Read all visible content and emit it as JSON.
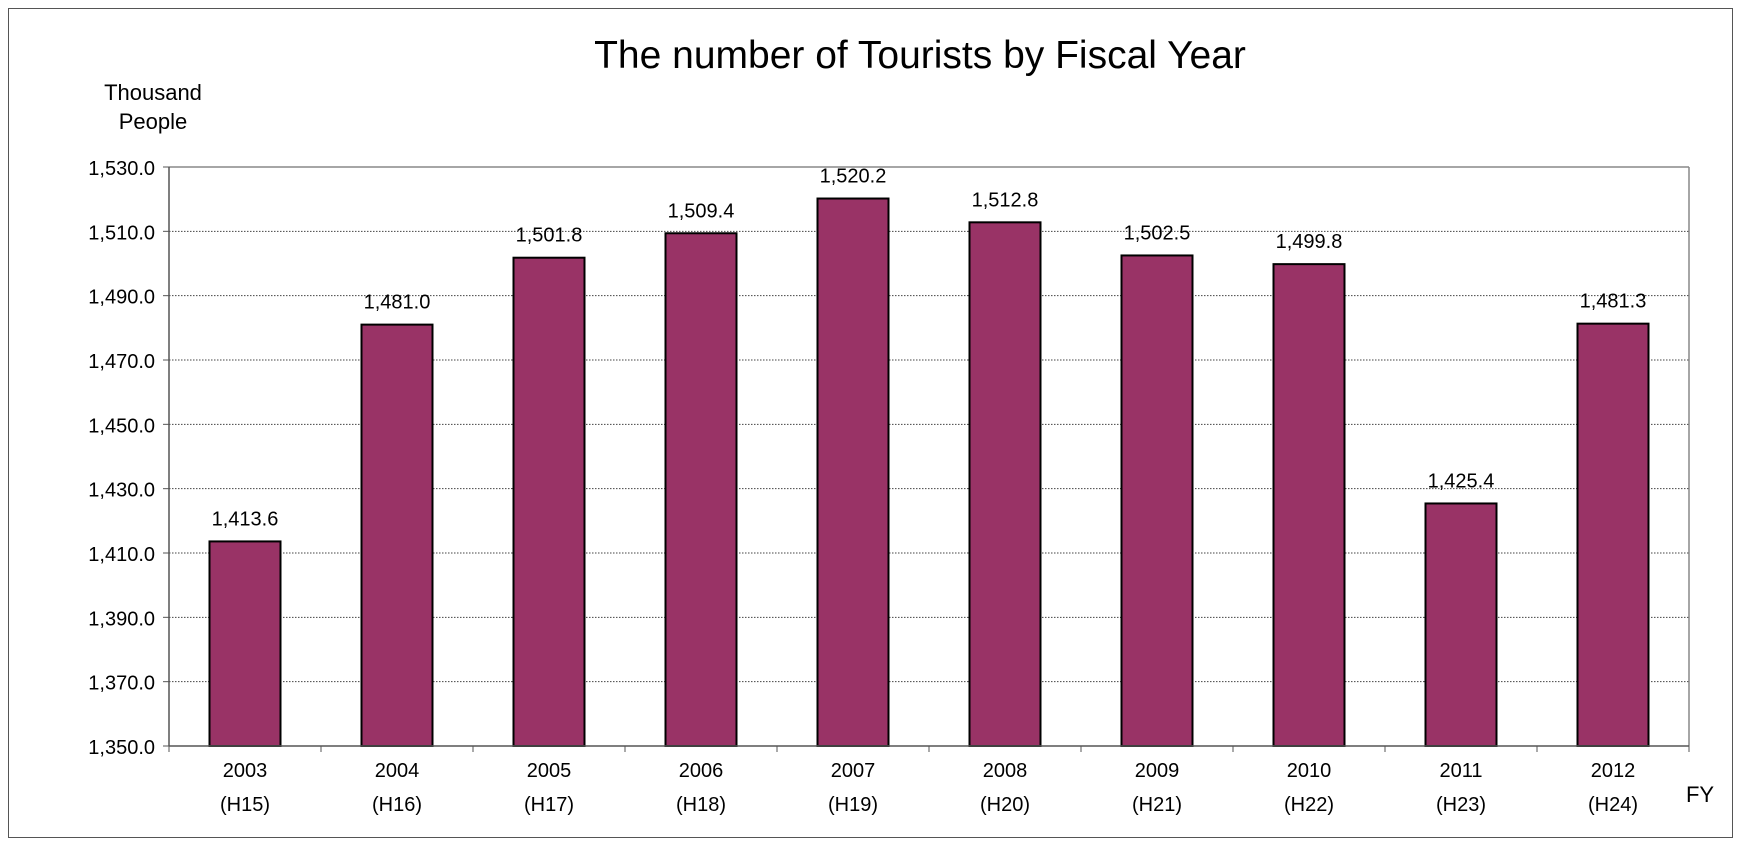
{
  "chart_data": {
    "type": "bar",
    "title": "The number of Tourists by Fiscal Year",
    "ylabel_line1": "Thousand",
    "ylabel_line2": "People",
    "xlabel": "FY",
    "categories": [
      "2003",
      "2004",
      "2005",
      "2006",
      "2007",
      "2008",
      "2009",
      "2010",
      "2011",
      "2012"
    ],
    "subcategories": [
      "(H15)",
      "(H16)",
      "(H17)",
      "(H18)",
      "(H19)",
      "(H20)",
      "(H21)",
      "(H22)",
      "(H23)",
      "(H24)"
    ],
    "values": [
      1413.6,
      1481.0,
      1501.8,
      1509.4,
      1520.2,
      1512.8,
      1502.5,
      1499.8,
      1425.4,
      1481.3
    ],
    "data_labels": [
      "1,413.6",
      "1,481.0",
      "1,501.8",
      "1,509.4",
      "1,520.2",
      "1,512.8",
      "1,502.5",
      "1,499.8",
      "1,425.4",
      "1,481.3"
    ],
    "ylim": [
      1350,
      1530
    ],
    "yticks": [
      1350,
      1370,
      1390,
      1410,
      1430,
      1450,
      1470,
      1490,
      1510,
      1530
    ],
    "ytick_labels": [
      "1,350.0",
      "1,370.0",
      "1,390.0",
      "1,410.0",
      "1,430.0",
      "1,450.0",
      "1,470.0",
      "1,490.0",
      "1,510.0",
      "1,530.0"
    ],
    "grid": true,
    "legend": "none",
    "bar_color": "#993366",
    "bar_edge_color": "#000000"
  }
}
